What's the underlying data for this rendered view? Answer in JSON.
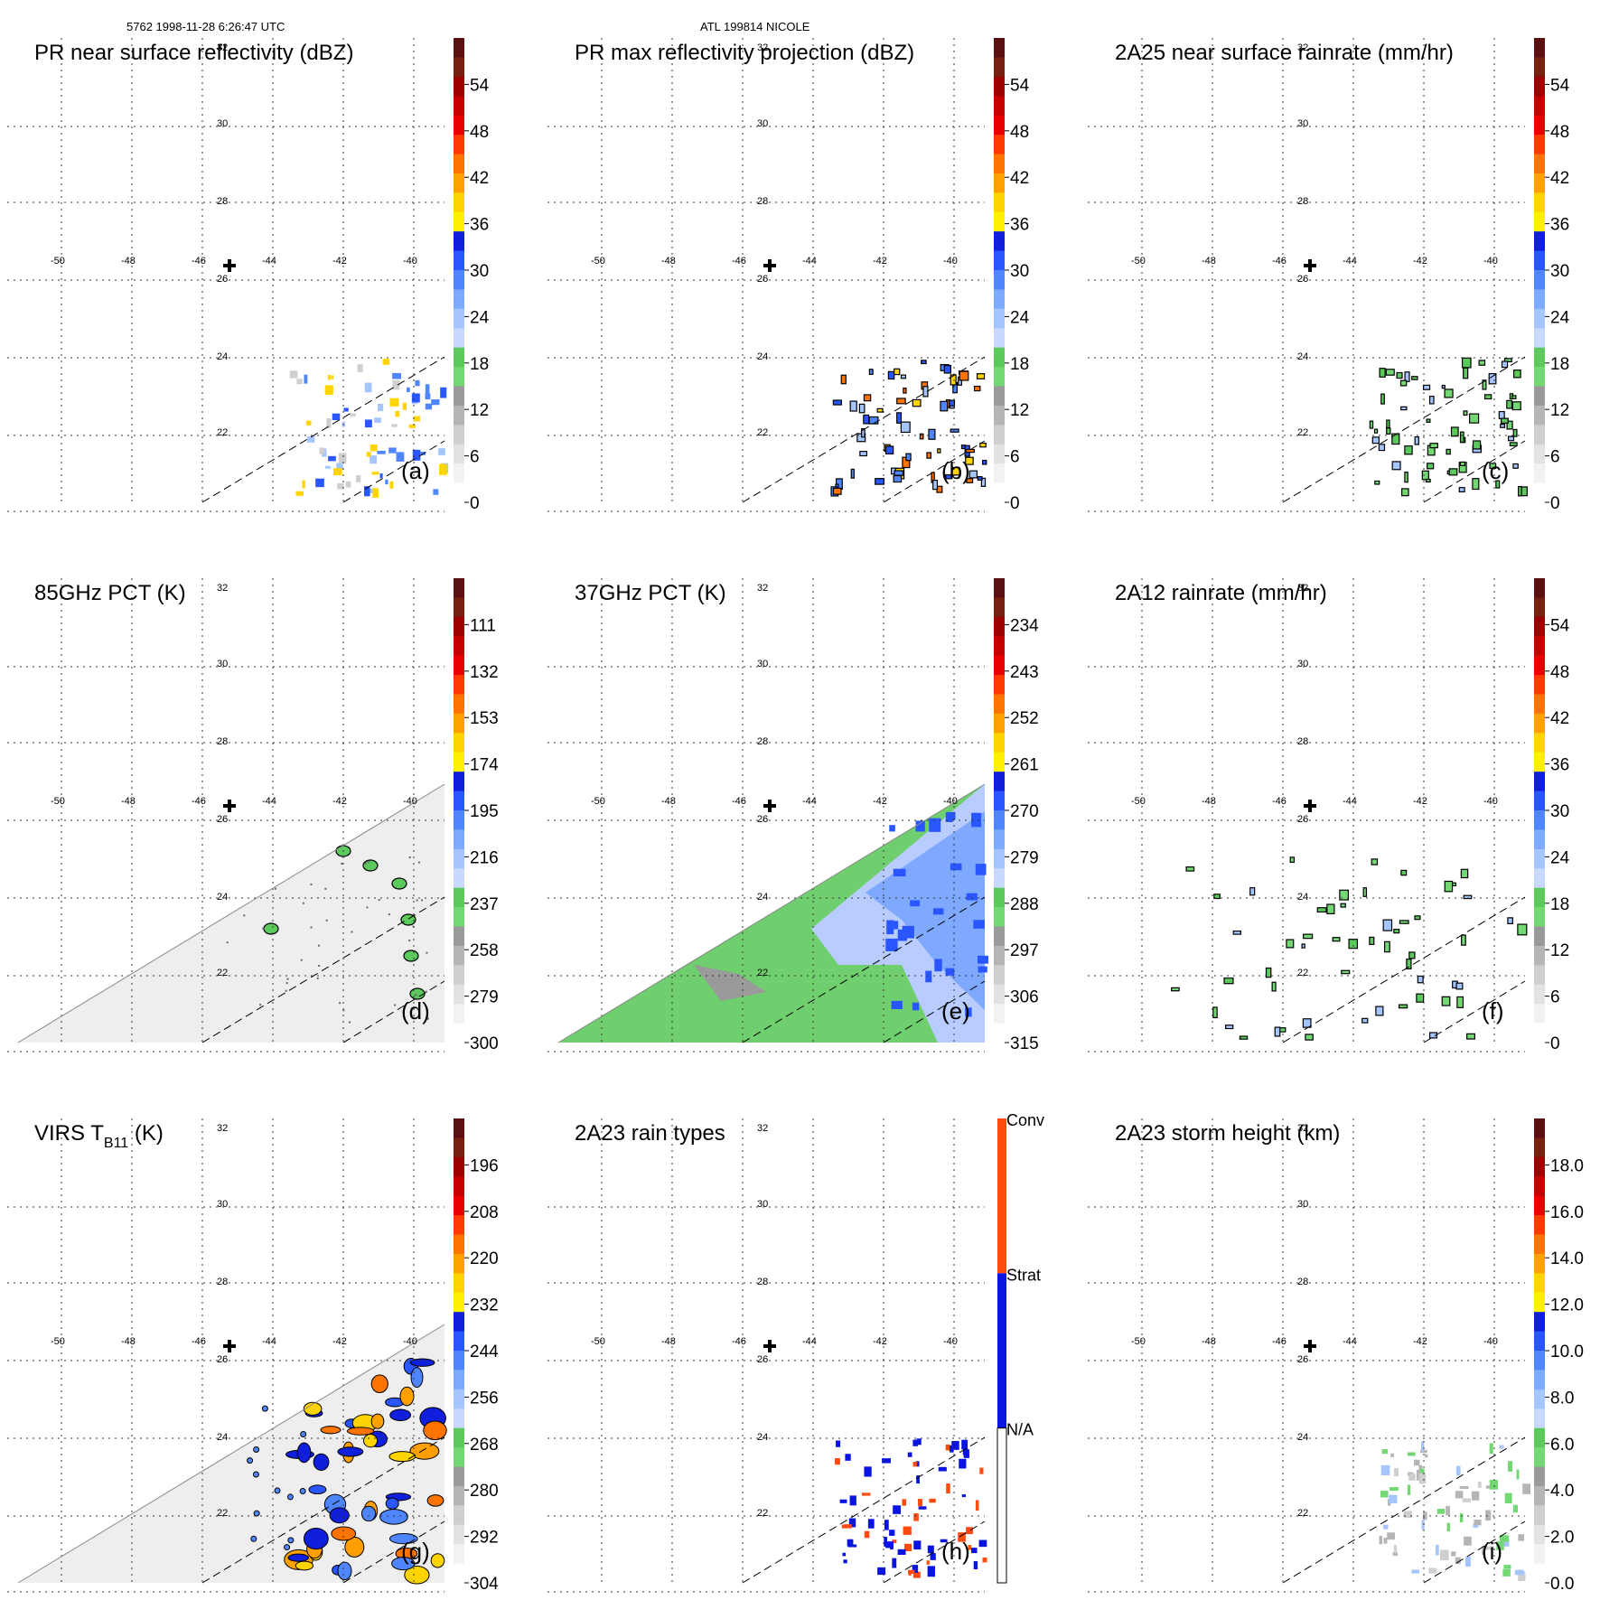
{
  "header": {
    "left": "5762 1998-11-28 6:26:47 UTC",
    "center": "ATL 199814 NICOLE"
  },
  "map": {
    "lon_ticks": [
      "-50",
      "-48",
      "-46",
      "-44",
      "-42",
      "-40"
    ],
    "lat_ticks": [
      "32",
      "30",
      "28",
      "26",
      "24",
      "22"
    ],
    "storm_center_marker": "plus-marker"
  },
  "chart_data": [
    {
      "type": "heatmap",
      "title": "PR near surface reflectivity (dBZ)",
      "label": "(a)",
      "colorbar_ticks": [
        "54",
        "48",
        "42",
        "36",
        "30",
        "24",
        "18",
        "12",
        "6",
        "0"
      ],
      "range": [
        0,
        60
      ]
    },
    {
      "type": "heatmap",
      "title": "PR max reflectivity projection (dBZ)",
      "label": "(b)",
      "colorbar_ticks": [
        "54",
        "48",
        "42",
        "36",
        "30",
        "24",
        "18",
        "12",
        "6",
        "0"
      ],
      "range": [
        0,
        60
      ]
    },
    {
      "type": "heatmap",
      "title": "2A25 near surface rainrate (mm/hr)",
      "label": "(c)",
      "colorbar_ticks": [
        "54",
        "48",
        "42",
        "36",
        "30",
        "24",
        "18",
        "12",
        "6",
        "0"
      ],
      "range": [
        0,
        60
      ]
    },
    {
      "type": "heatmap",
      "title": "85GHz PCT (K)",
      "label": "(d)",
      "colorbar_ticks": [
        "111",
        "132",
        "153",
        "174",
        "195",
        "216",
        "237",
        "258",
        "279",
        "300"
      ],
      "range": [
        300,
        90
      ]
    },
    {
      "type": "heatmap",
      "title": "37GHz PCT (K)",
      "label": "(e)",
      "colorbar_ticks": [
        "234",
        "243",
        "252",
        "261",
        "270",
        "279",
        "288",
        "297",
        "306",
        "315"
      ],
      "range": [
        315,
        225
      ]
    },
    {
      "type": "heatmap",
      "title": "2A12 rainrate (mm/hr)",
      "label": "(f)",
      "colorbar_ticks": [
        "54",
        "48",
        "42",
        "36",
        "30",
        "24",
        "18",
        "12",
        "6",
        "0"
      ],
      "range": [
        0,
        60
      ]
    },
    {
      "type": "heatmap",
      "title_main": "VIRS T",
      "title_sub": "B11",
      "title_suffix": " (K)",
      "label": "(g)",
      "colorbar_ticks": [
        "196",
        "208",
        "220",
        "232",
        "244",
        "256",
        "268",
        "280",
        "292",
        "304"
      ],
      "range": [
        304,
        184
      ]
    },
    {
      "type": "heatmap",
      "title": "2A23 rain types",
      "label": "(h)",
      "colorbar_ticks": [
        "Conv",
        "Strat",
        "N/A"
      ],
      "categorical": true
    },
    {
      "type": "heatmap",
      "title": "2A23 storm height (km)",
      "label": "(i)",
      "colorbar_ticks": [
        "18.0",
        "16.0",
        "14.0",
        "12.0",
        "10.0",
        "8.0",
        "6.0",
        "4.0",
        "2.0",
        "0.0"
      ],
      "range": [
        0,
        20
      ]
    }
  ],
  "colors": {
    "std_scale": [
      "#ffffff",
      "#f2f2f2",
      "#e2e2e2",
      "#cfcfcf",
      "#b5b5b5",
      "#9a9a9a",
      "#73d873",
      "#5cc95c",
      "#c8d8ff",
      "#a5c5ff",
      "#7eaaff",
      "#4f86ff",
      "#2a56ff",
      "#0f1fdc",
      "#ffef00",
      "#ffd400",
      "#ffa000",
      "#ff7400",
      "#ff3a00",
      "#e80000",
      "#c40000",
      "#9c0000",
      "#782010",
      "#5a1010"
    ],
    "rain_types": [
      "#ffffff",
      "#0a14e0",
      "#ff4a10"
    ]
  }
}
